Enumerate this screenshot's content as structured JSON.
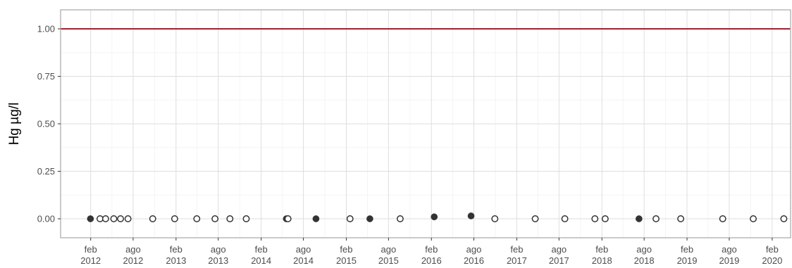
{
  "chart_data": {
    "type": "scatter",
    "title": "",
    "xlabel": "",
    "ylabel": "Hg µg/l",
    "ylim": [
      -0.1,
      1.1
    ],
    "xlim": [
      "2011-09-25",
      "2020-04-20"
    ],
    "y_ticks": [
      {
        "value": 0.0,
        "label": "0.00"
      },
      {
        "value": 0.25,
        "label": "0.25"
      },
      {
        "value": 0.5,
        "label": "0.50"
      },
      {
        "value": 0.75,
        "label": "0.75"
      },
      {
        "value": 1.0,
        "label": "1.00"
      }
    ],
    "x_ticks": [
      {
        "date": "2012-02-01",
        "label": [
          "feb",
          "2012"
        ]
      },
      {
        "date": "2012-08-01",
        "label": [
          "ago",
          "2012"
        ]
      },
      {
        "date": "2013-02-01",
        "label": [
          "feb",
          "2013"
        ]
      },
      {
        "date": "2013-08-01",
        "label": [
          "ago",
          "2013"
        ]
      },
      {
        "date": "2014-02-01",
        "label": [
          "feb",
          "2014"
        ]
      },
      {
        "date": "2014-08-01",
        "label": [
          "ago",
          "2014"
        ]
      },
      {
        "date": "2015-02-01",
        "label": [
          "feb",
          "2015"
        ]
      },
      {
        "date": "2015-08-01",
        "label": [
          "ago",
          "2015"
        ]
      },
      {
        "date": "2016-02-01",
        "label": [
          "feb",
          "2016"
        ]
      },
      {
        "date": "2016-08-01",
        "label": [
          "ago",
          "2016"
        ]
      },
      {
        "date": "2017-02-01",
        "label": [
          "feb",
          "2017"
        ]
      },
      {
        "date": "2017-08-01",
        "label": [
          "ago",
          "2017"
        ]
      },
      {
        "date": "2018-02-01",
        "label": [
          "feb",
          "2018"
        ]
      },
      {
        "date": "2018-08-01",
        "label": [
          "ago",
          "2018"
        ]
      },
      {
        "date": "2019-02-01",
        "label": [
          "feb",
          "2019"
        ]
      },
      {
        "date": "2019-08-01",
        "label": [
          "ago",
          "2019"
        ]
      },
      {
        "date": "2020-02-01",
        "label": [
          "feb",
          "2020"
        ]
      }
    ],
    "threshold": {
      "y": 1.0,
      "color": "#b2182b"
    },
    "grid": true,
    "legend": "none",
    "series": [
      {
        "style": "filled",
        "color": "#333333",
        "points": [
          {
            "x": "2012-01-31",
            "y": 0.0
          },
          {
            "x": "2014-05-20",
            "y": 0.0
          },
          {
            "x": "2014-09-24",
            "y": 0.0
          },
          {
            "x": "2015-05-13",
            "y": 0.0
          },
          {
            "x": "2016-02-13",
            "y": 0.01
          },
          {
            "x": "2016-07-20",
            "y": 0.015
          },
          {
            "x": "2018-07-10",
            "y": 0.0
          }
        ]
      },
      {
        "style": "open",
        "color": "#333333",
        "points": [
          {
            "x": "2012-03-12",
            "y": 0.0
          },
          {
            "x": "2012-04-05",
            "y": 0.0
          },
          {
            "x": "2012-05-10",
            "y": 0.0
          },
          {
            "x": "2012-06-08",
            "y": 0.0
          },
          {
            "x": "2012-07-10",
            "y": 0.0
          },
          {
            "x": "2012-10-24",
            "y": 0.0
          },
          {
            "x": "2013-01-26",
            "y": 0.0
          },
          {
            "x": "2013-05-01",
            "y": 0.0
          },
          {
            "x": "2013-07-18",
            "y": 0.0
          },
          {
            "x": "2013-09-20",
            "y": 0.0
          },
          {
            "x": "2013-11-29",
            "y": 0.0
          },
          {
            "x": "2014-05-27",
            "y": 0.0
          },
          {
            "x": "2015-02-17",
            "y": 0.0
          },
          {
            "x": "2015-09-20",
            "y": 0.0
          },
          {
            "x": "2016-10-30",
            "y": 0.0
          },
          {
            "x": "2017-04-21",
            "y": 0.0
          },
          {
            "x": "2017-08-26",
            "y": 0.0
          },
          {
            "x": "2018-01-02",
            "y": 0.0
          },
          {
            "x": "2018-02-15",
            "y": 0.0
          },
          {
            "x": "2018-09-21",
            "y": 0.0
          },
          {
            "x": "2019-01-05",
            "y": 0.0
          },
          {
            "x": "2019-07-04",
            "y": 0.0
          },
          {
            "x": "2019-11-12",
            "y": 0.0
          },
          {
            "x": "2020-03-22",
            "y": 0.0
          }
        ]
      }
    ]
  }
}
